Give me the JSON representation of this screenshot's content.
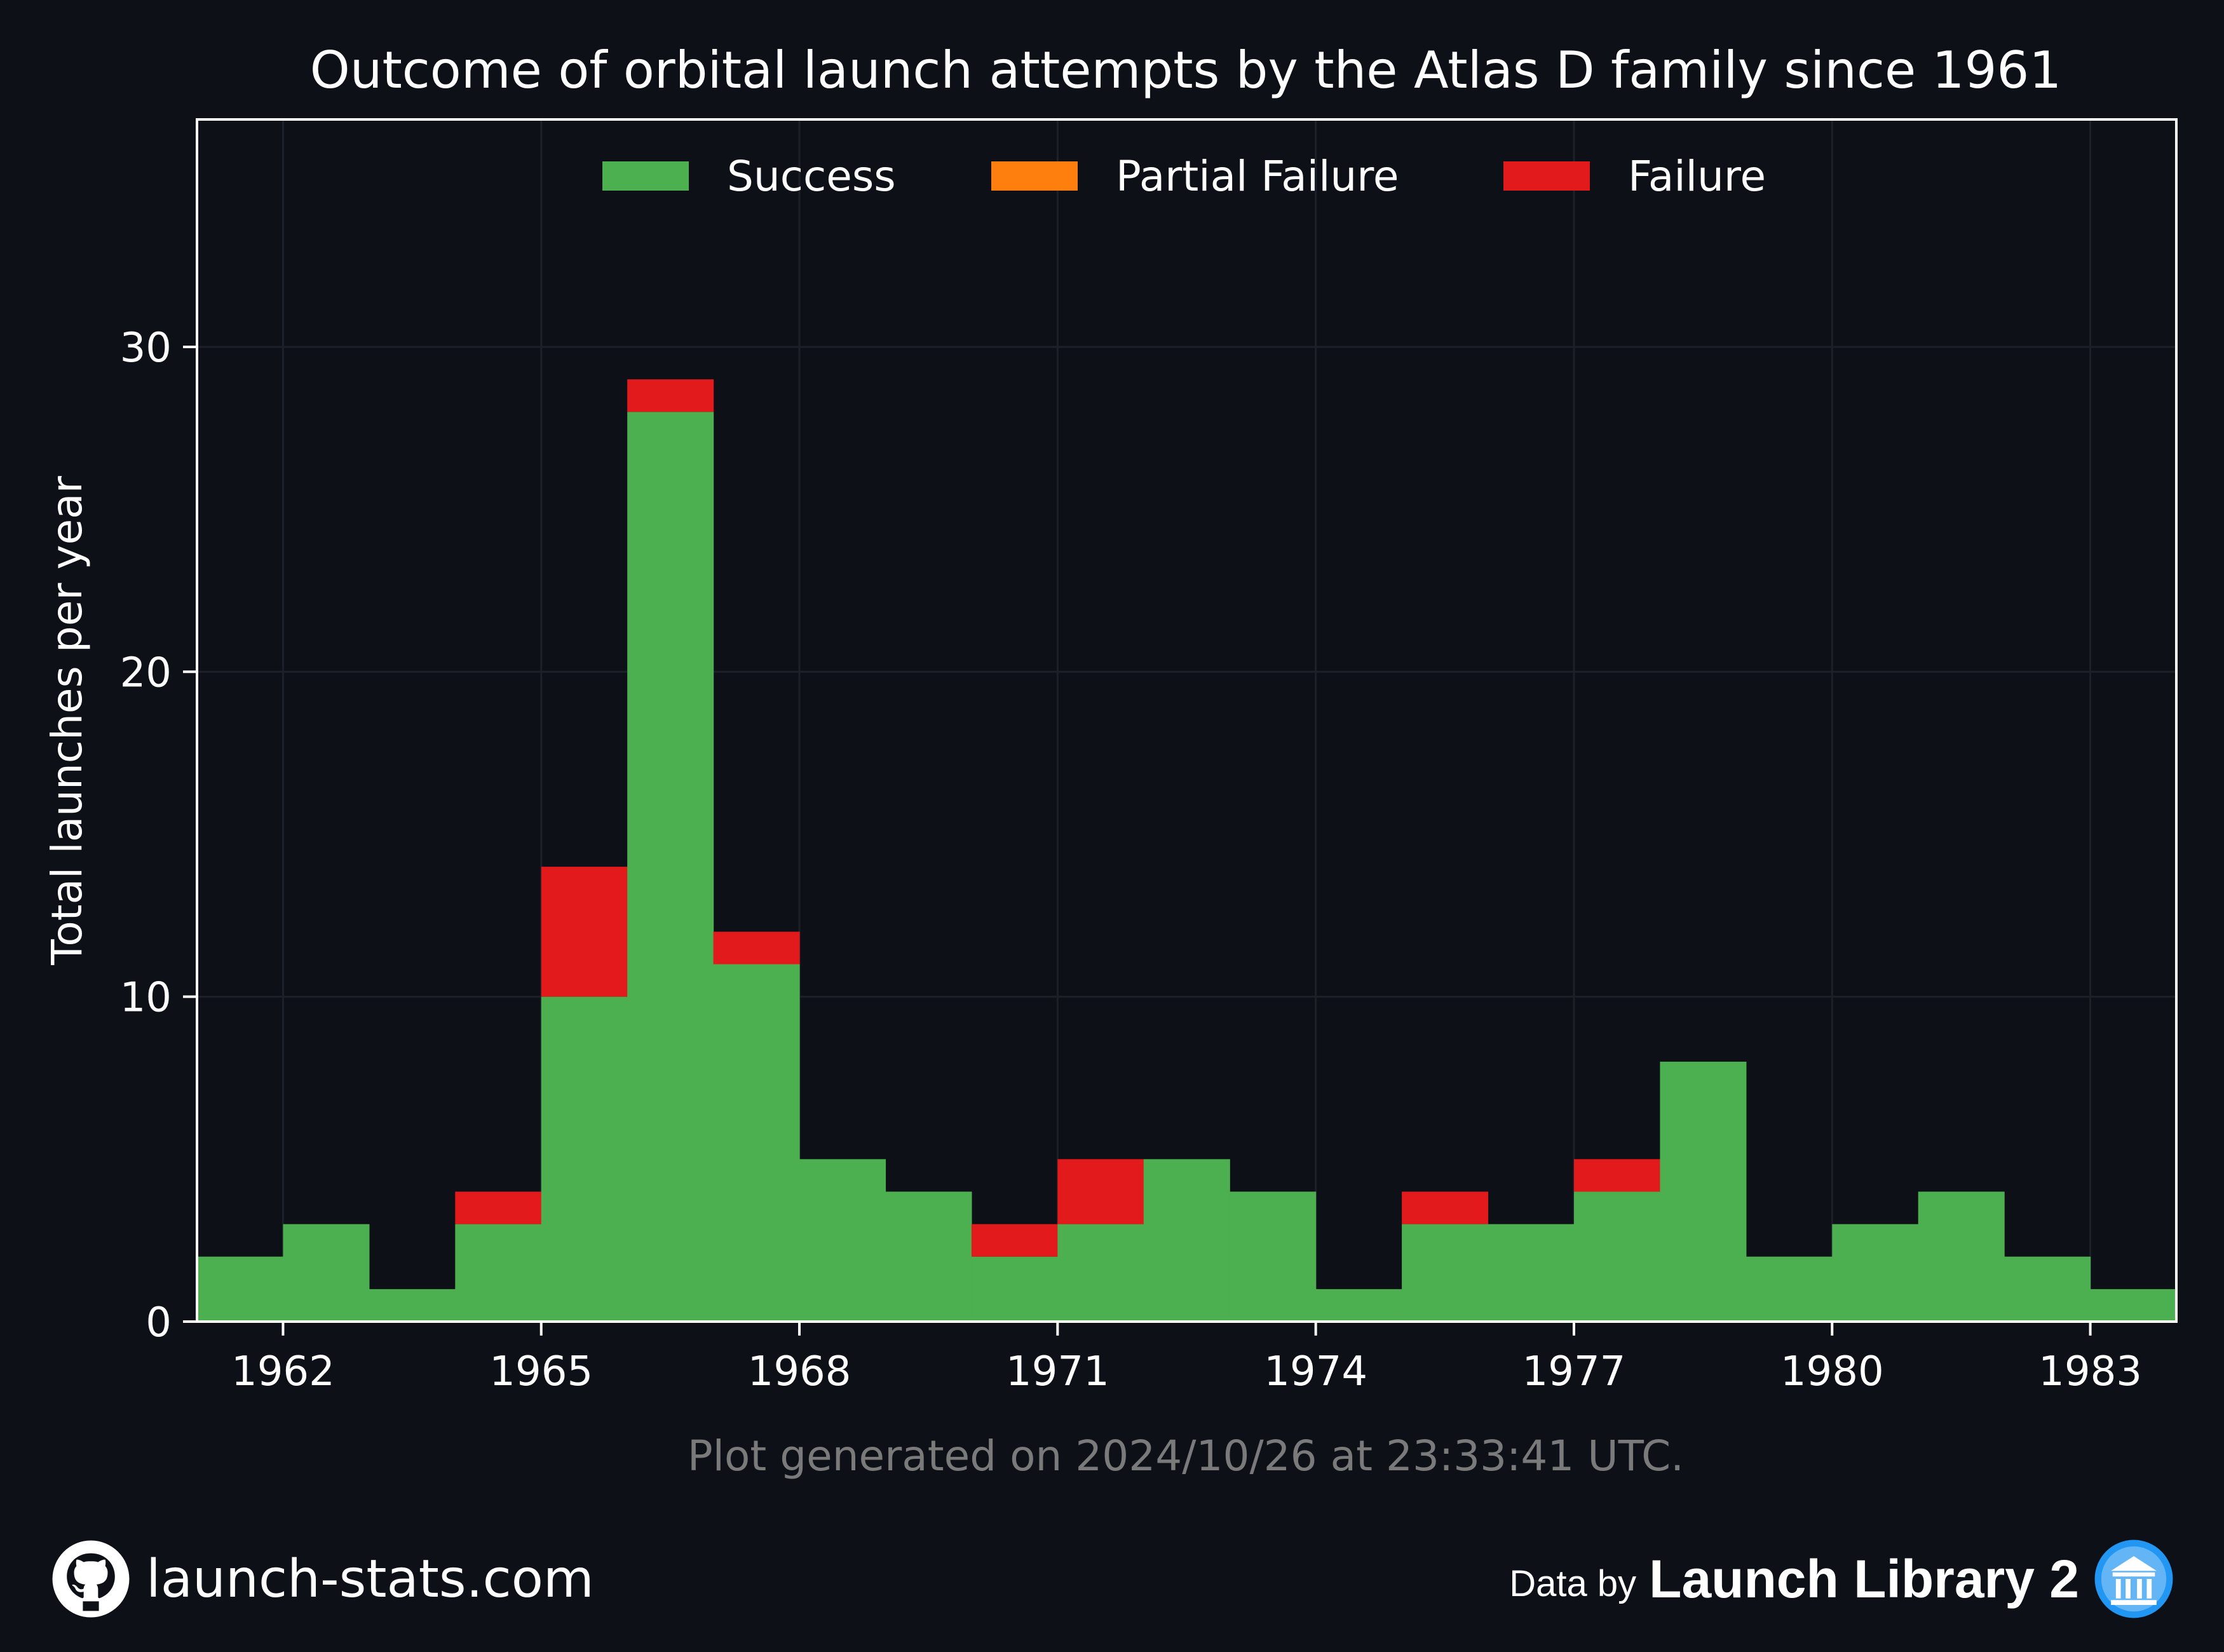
{
  "chart_data": {
    "type": "bar",
    "stacked": true,
    "title": "Outcome of orbital launch attempts by the Atlas D family since 1961",
    "xlabel": "",
    "ylabel": "Total launches per year",
    "categories": [
      1961,
      1962,
      1963,
      1964,
      1965,
      1966,
      1967,
      1968,
      1969,
      1970,
      1971,
      1972,
      1973,
      1974,
      1975,
      1976,
      1977,
      1978,
      1979,
      1980,
      1981,
      1982,
      1983
    ],
    "x_range": [
      1961,
      1984
    ],
    "x_ticks": [
      1962,
      1965,
      1968,
      1971,
      1974,
      1977,
      1980,
      1983
    ],
    "ylim": [
      0,
      37
    ],
    "y_ticks": [
      0,
      10,
      20,
      30
    ],
    "series": [
      {
        "name": "Success",
        "color": "#4caf50",
        "values": [
          2,
          3,
          1,
          3,
          10,
          28,
          11,
          5,
          4,
          2,
          3,
          5,
          4,
          1,
          3,
          3,
          4,
          8,
          2,
          3,
          4,
          2,
          1
        ]
      },
      {
        "name": "Partial Failure",
        "color": "#ff7f0e",
        "values": [
          0,
          0,
          0,
          0,
          0,
          0,
          0,
          0,
          0,
          0,
          0,
          0,
          0,
          0,
          0,
          0,
          0,
          0,
          0,
          0,
          0,
          0,
          0
        ]
      },
      {
        "name": "Failure",
        "color": "#e31a1c",
        "values": [
          0,
          0,
          0,
          1,
          4,
          1,
          1,
          0,
          0,
          1,
          2,
          0,
          0,
          0,
          1,
          0,
          1,
          0,
          0,
          0,
          0,
          0,
          0
        ]
      }
    ],
    "grid": true,
    "legend_position": "top-center",
    "note": "Plot generated on 2024/10/26 at 23:33:41 UTC."
  },
  "footer": {
    "site": "launch-stats.com",
    "data_by": "Data by",
    "library": "Launch Library 2"
  },
  "colors": {
    "background": "#0d1017",
    "text": "#ffffff",
    "note_text": "#7a7a7a",
    "grid": "#1c2129",
    "logo_blue": "#2196f3"
  }
}
